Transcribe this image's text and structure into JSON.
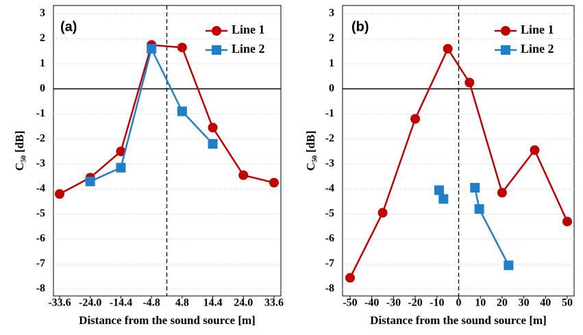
{
  "chart_data": [
    {
      "type": "line",
      "panel_label": "(a)",
      "x_label": "Distance from the sound source [m]",
      "y_label": "C₅₀ [dB]",
      "xlim": [
        -33.6,
        33.6
      ],
      "xticks": [
        -33.6,
        {
          "value": -24,
          "label": "-24.0"
        },
        -14.4,
        -4.8,
        4.8,
        14.4,
        {
          "value": 24,
          "label": "24.0"
        },
        33.6
      ],
      "ylim": [
        -8,
        3
      ],
      "yticks": [
        -8,
        -7,
        -6,
        -5,
        -4,
        -3,
        -2,
        -1,
        0,
        1,
        2,
        3
      ],
      "grid": true,
      "legend": "upper right",
      "vline": 0,
      "hline": 0,
      "series": [
        {
          "name": "Line 1",
          "color": "#c00000",
          "marker": "circle",
          "x": [
            -33.6,
            -24,
            -14.4,
            -4.8,
            4.8,
            14.4,
            24,
            33.6
          ],
          "values": [
            -4.2,
            -3.55,
            -2.5,
            1.75,
            1.65,
            -1.55,
            -3.45,
            -3.75
          ]
        },
        {
          "name": "Line 2",
          "color": "#1f7fc8",
          "marker": "square",
          "x": [
            -24,
            -14.4,
            -4.8,
            4.8,
            14.4
          ],
          "values": [
            -3.7,
            -3.15,
            1.6,
            -0.9,
            -2.2
          ]
        }
      ]
    },
    {
      "type": "line",
      "panel_label": "(b)",
      "x_label": "Distance from the sound source [m]",
      "y_label": "C₅₀ [dB]",
      "xlim": [
        -50,
        50
      ],
      "xticks": [
        -50,
        -40,
        -30,
        -20,
        -10,
        0,
        10,
        20,
        30,
        40,
        50
      ],
      "ylim": [
        -8,
        3
      ],
      "yticks": [
        -8,
        -7,
        -6,
        -5,
        -4,
        -3,
        -2,
        -1,
        0,
        1,
        2,
        3
      ],
      "grid": true,
      "legend": "upper right",
      "vline": 0,
      "hline": 0,
      "series": [
        {
          "name": "Line 1",
          "color": "#c00000",
          "marker": "circle",
          "x": [
            -50,
            -35,
            -20,
            -5,
            5,
            20,
            35,
            50
          ],
          "values": [
            -7.55,
            -4.95,
            -1.2,
            1.6,
            0.25,
            -4.15,
            -2.45,
            -5.3
          ]
        },
        {
          "name": "Line 2",
          "color": "#1f7fc8",
          "marker": "square",
          "x": [
            -9,
            -7,
            null,
            7.5,
            9.5,
            23
          ],
          "values": [
            -4.05,
            -4.4,
            null,
            -3.95,
            -4.8,
            -7.05
          ]
        }
      ]
    }
  ]
}
